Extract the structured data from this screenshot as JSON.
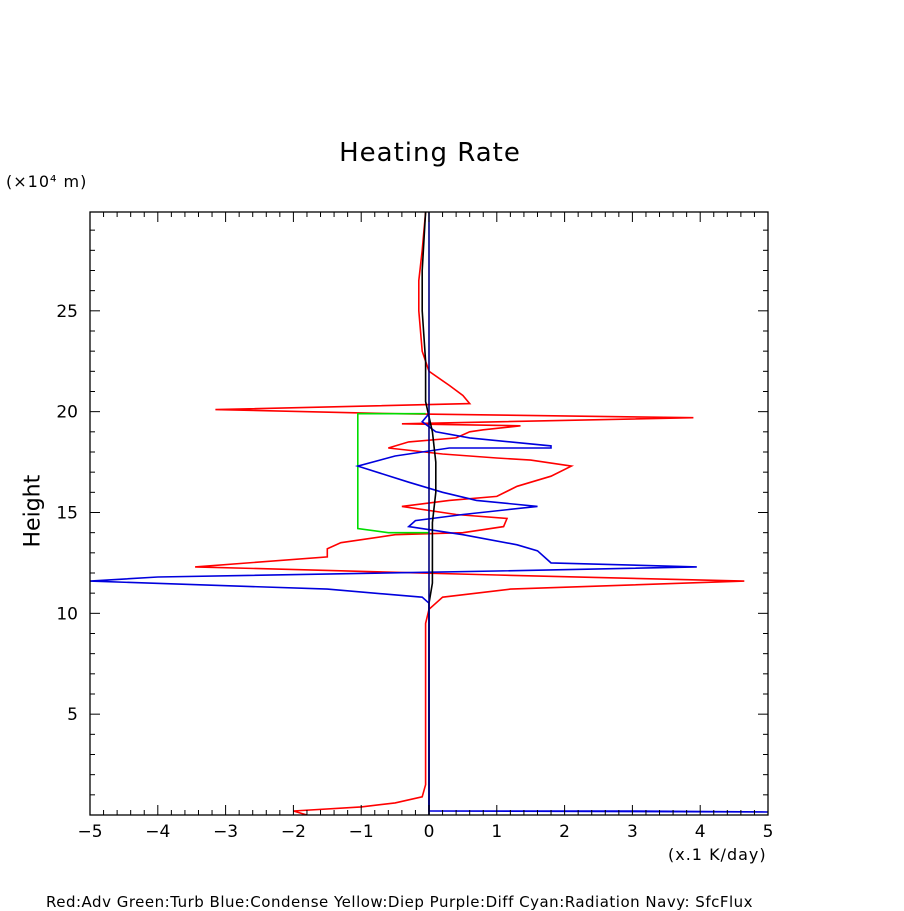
{
  "chart_data": {
    "type": "line",
    "title": "Heating Rate",
    "ylabel": "Height",
    "yunit": "(×10⁴ m)",
    "xunit": "(x.1 K/day)",
    "xlim": [
      -5,
      5
    ],
    "ylim": [
      0,
      29.9
    ],
    "xticks": [
      -5,
      -4,
      -3,
      -2,
      -1,
      0,
      1,
      2,
      3,
      4,
      5
    ],
    "xtick_labels": [
      "−5",
      "−4",
      "−3",
      "−2",
      "−1",
      "0",
      "1",
      "2",
      "3",
      "4",
      "5"
    ],
    "yticks": [
      5,
      10,
      15,
      20,
      25
    ],
    "ytick_labels": [
      "5",
      "10",
      "15",
      "20",
      "25"
    ],
    "grid": false,
    "legend_text": "Red:Adv  Green:Turb  Blue:Condense  Yellow:Diep  Purple:Diff  Cyan:Radiation  Navy: SfcFlux",
    "series": [
      {
        "name": "Adv",
        "color": "#ff0000",
        "points": [
          [
            -1.8,
            0.0
          ],
          [
            -2.0,
            0.2
          ],
          [
            -1.0,
            0.4
          ],
          [
            -0.5,
            0.6
          ],
          [
            -0.1,
            0.9
          ],
          [
            -0.05,
            1.5
          ],
          [
            -0.05,
            9.5
          ],
          [
            0.0,
            10.2
          ],
          [
            0.2,
            10.8
          ],
          [
            1.2,
            11.2
          ],
          [
            4.65,
            11.6
          ],
          [
            1.0,
            11.9
          ],
          [
            -3.45,
            12.3
          ],
          [
            -1.5,
            12.8
          ],
          [
            -1.5,
            13.2
          ],
          [
            -1.3,
            13.5
          ],
          [
            -0.5,
            13.9
          ],
          [
            0.5,
            14.0
          ],
          [
            1.1,
            14.3
          ],
          [
            1.15,
            14.7
          ],
          [
            0.4,
            14.9
          ],
          [
            -0.4,
            15.3
          ],
          [
            0.3,
            15.6
          ],
          [
            1.0,
            15.8
          ],
          [
            1.3,
            16.3
          ],
          [
            1.8,
            16.8
          ],
          [
            2.1,
            17.3
          ],
          [
            1.5,
            17.6
          ],
          [
            1.0,
            17.7
          ],
          [
            0.2,
            17.9
          ],
          [
            -0.6,
            18.2
          ],
          [
            -0.3,
            18.5
          ],
          [
            0.4,
            18.7
          ],
          [
            0.6,
            19.0
          ],
          [
            0.8,
            19.1
          ],
          [
            1.35,
            19.3
          ],
          [
            -0.4,
            19.4
          ],
          [
            3.9,
            19.7
          ],
          [
            -0.5,
            19.9
          ],
          [
            -3.15,
            20.1
          ],
          [
            0.6,
            20.4
          ],
          [
            0.5,
            20.8
          ],
          [
            0.3,
            21.3
          ],
          [
            0.0,
            22.0
          ],
          [
            -0.1,
            23.0
          ],
          [
            -0.15,
            25.0
          ],
          [
            -0.15,
            26.5
          ],
          [
            -0.1,
            28.0
          ],
          [
            -0.05,
            29.9
          ]
        ]
      },
      {
        "name": "Turb",
        "color": "#00dd00",
        "points": [
          [
            -0.05,
            19.9
          ],
          [
            -1.05,
            19.9
          ],
          [
            -1.05,
            14.2
          ],
          [
            -0.6,
            14.0
          ],
          [
            0.0,
            14.0
          ]
        ]
      },
      {
        "name": "Condense",
        "color": "#0000dd",
        "points": [
          [
            0.0,
            0.2
          ],
          [
            3.0,
            0.2
          ],
          [
            5.0,
            0.15
          ],
          [
            0.0,
            0.2
          ],
          [
            0.0,
            10.5
          ],
          [
            -0.1,
            10.8
          ],
          [
            -1.5,
            11.2
          ],
          [
            -5.0,
            11.6
          ],
          [
            -4.0,
            11.8
          ],
          [
            1.0,
            12.1
          ],
          [
            3.95,
            12.3
          ],
          [
            1.8,
            12.5
          ],
          [
            1.6,
            13.1
          ],
          [
            1.3,
            13.4
          ],
          [
            0.5,
            13.9
          ],
          [
            -0.3,
            14.3
          ],
          [
            -0.2,
            14.6
          ],
          [
            0.5,
            14.9
          ],
          [
            1.6,
            15.3
          ],
          [
            0.7,
            15.6
          ],
          [
            0.2,
            16.0
          ],
          [
            -0.3,
            16.5
          ],
          [
            -1.05,
            17.3
          ],
          [
            -0.5,
            17.8
          ],
          [
            0.3,
            18.2
          ],
          [
            1.8,
            18.2
          ],
          [
            1.8,
            18.3
          ],
          [
            0.6,
            18.7
          ],
          [
            0.1,
            19.0
          ],
          [
            -0.1,
            19.5
          ],
          [
            0.0,
            19.9
          ]
        ]
      },
      {
        "name": "Black",
        "color": "#000000",
        "points": [
          [
            0.0,
            0.0
          ],
          [
            0.0,
            9.5
          ],
          [
            0.0,
            10.5
          ],
          [
            0.05,
            11.5
          ],
          [
            0.05,
            13.0
          ],
          [
            0.05,
            14.5
          ],
          [
            0.1,
            16.0
          ],
          [
            0.1,
            17.5
          ],
          [
            0.05,
            19.0
          ],
          [
            -0.05,
            20.5
          ],
          [
            -0.05,
            22.5
          ],
          [
            -0.1,
            25.0
          ],
          [
            -0.1,
            27.0
          ],
          [
            -0.05,
            29.9
          ]
        ]
      },
      {
        "name": "SfcFlux",
        "color": "#000080",
        "points": [
          [
            0.0,
            0.0
          ],
          [
            0.0,
            29.9
          ]
        ]
      }
    ]
  }
}
